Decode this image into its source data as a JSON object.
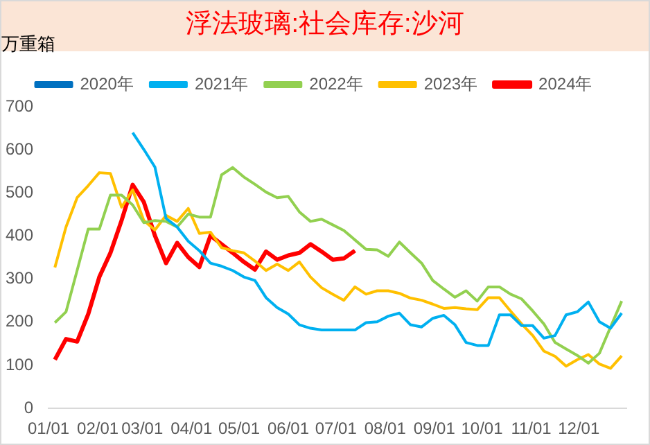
{
  "chart_data": {
    "type": "line",
    "title": "浮法玻璃:社会库存:沙河",
    "ylabel": "万重箱",
    "x": [
      "--01-05",
      "--01-12",
      "--01-19",
      "--01-26",
      "--02-02",
      "--02-09",
      "--02-16",
      "--02-23",
      "--03-02",
      "--03-09",
      "--03-16",
      "--03-23",
      "--03-30",
      "--04-06",
      "--04-13",
      "--04-20",
      "--04-27",
      "--05-04",
      "--05-11",
      "--05-18",
      "--05-25",
      "--06-01",
      "--06-08",
      "--06-15",
      "--06-22",
      "--06-29",
      "--07-06",
      "--07-13",
      "--07-20",
      "--07-27",
      "--08-03",
      "--08-10",
      "--08-17",
      "--08-24",
      "--08-31",
      "--09-07",
      "--09-14",
      "--09-21",
      "--09-28",
      "--10-05",
      "--10-12",
      "--10-19",
      "--10-26",
      "--11-02",
      "--11-09",
      "--11-16",
      "--11-23",
      "--11-30",
      "--12-07",
      "--12-14",
      "--12-21",
      "--12-28"
    ],
    "series": [
      {
        "name": "2020年",
        "color": "#0070c0",
        "values": [
          null,
          null,
          null,
          null,
          null,
          null,
          null,
          null,
          null,
          null,
          null,
          null,
          null,
          null,
          null,
          null,
          null,
          null,
          null,
          null,
          null,
          null,
          null,
          null,
          null,
          null,
          null,
          null,
          null,
          null,
          null,
          null,
          null,
          null,
          null,
          null,
          null,
          null,
          null,
          null,
          null,
          null,
          null,
          null,
          null,
          null,
          null,
          null,
          null,
          null,
          null,
          null
        ]
      },
      {
        "name": "2021年",
        "color": "#00b0f0",
        "values": [
          null,
          null,
          null,
          null,
          null,
          null,
          null,
          640,
          601,
          560,
          441,
          421,
          388,
          366,
          337,
          330,
          320,
          305,
          297,
          257,
          234,
          219,
          194,
          186,
          182,
          182,
          182,
          182,
          199,
          201,
          214,
          221,
          194,
          189,
          209,
          216,
          194,
          153,
          146,
          146,
          217,
          217,
          192,
          192,
          163,
          169,
          217,
          224,
          247,
          201,
          186,
          221
        ]
      },
      {
        "name": "2022年",
        "color": "#92d050",
        "values": [
          199,
          224,
          320,
          416,
          416,
          495,
          495,
          472,
          431,
          436,
          434,
          421,
          451,
          444,
          444,
          542,
          559,
          537,
          520,
          502,
          489,
          492,
          456,
          434,
          439,
          426,
          413,
          391,
          369,
          368,
          353,
          386,
          361,
          337,
          297,
          277,
          258,
          273,
          249,
          282,
          282,
          265,
          254,
          226,
          196,
          153,
          138,
          123,
          105,
          128,
          189,
          249
        ]
      },
      {
        "name": "2023年",
        "color": "#ffc000",
        "values": [
          327,
          421,
          489,
          517,
          547,
          545,
          467,
          507,
          436,
          414,
          448,
          434,
          464,
          406,
          409,
          373,
          366,
          361,
          342,
          320,
          335,
          320,
          340,
          305,
          280,
          265,
          251,
          282,
          265,
          273,
          273,
          267,
          256,
          251,
          242,
          232,
          234,
          231,
          229,
          257,
          257,
          226,
          196,
          169,
          133,
          121,
          98,
          113,
          125,
          103,
          93,
          122
        ]
      },
      {
        "name": "2024年",
        "color": "#ff0000",
        "values": [
          113,
          161,
          155,
          219,
          305,
          361,
          436,
          519,
          479,
          401,
          337,
          384,
          351,
          328,
          401,
          381,
          361,
          340,
          322,
          364,
          345,
          355,
          361,
          381,
          364,
          345,
          348,
          366,
          null,
          null,
          null,
          null,
          null,
          null,
          null,
          null,
          null,
          null,
          null,
          null,
          null,
          null,
          null,
          null,
          null,
          null,
          null,
          null,
          null,
          null,
          null,
          null
        ]
      }
    ],
    "xlim": [
      "--01-01",
      "--12-31"
    ],
    "xticks": [
      {
        "value": "--01-01",
        "label": "01/01"
      },
      {
        "value": "--02-01",
        "label": "02/01"
      },
      {
        "value": "--03-01",
        "label": "03/01"
      },
      {
        "value": "--04-01",
        "label": "04/01"
      },
      {
        "value": "--05-01",
        "label": "05/01"
      },
      {
        "value": "--06-01",
        "label": "06/01"
      },
      {
        "value": "--07-01",
        "label": "07/01"
      },
      {
        "value": "--08-01",
        "label": "08/01"
      },
      {
        "value": "--09-01",
        "label": "09/01"
      },
      {
        "value": "--10-01",
        "label": "10/01"
      },
      {
        "value": "--11-01",
        "label": "11/01"
      },
      {
        "value": "--12-01",
        "label": "12/01"
      }
    ],
    "ylim": [
      0,
      700
    ],
    "yticks": [
      0,
      100,
      200,
      300,
      400,
      500,
      600,
      700
    ],
    "grid": false,
    "legend": "top",
    "marker": "none",
    "line_style": "solid"
  }
}
